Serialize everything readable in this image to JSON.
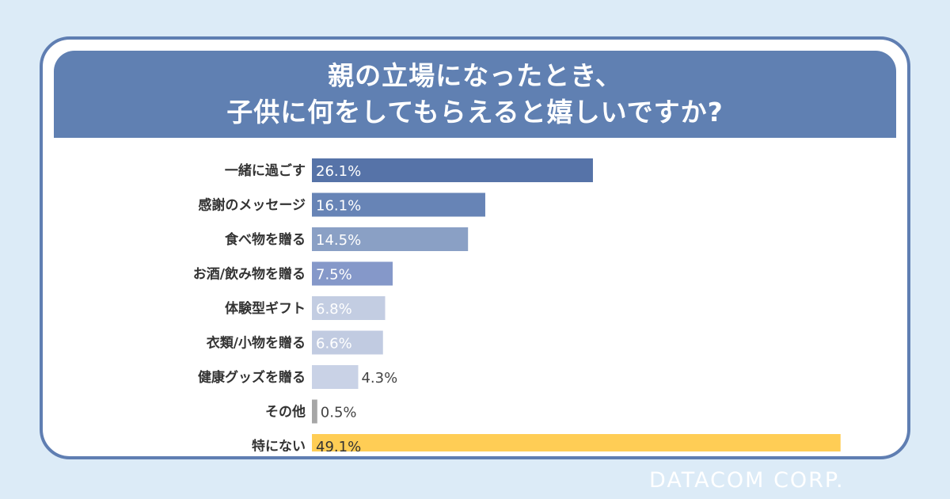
{
  "title": {
    "line1": "親の立場になったとき、",
    "line2": "子供に何をしてもらえると嬉しいですか?"
  },
  "colors": {
    "background": "#dcebf7",
    "card_border": "#5f7eb2",
    "title_band": "#6080b2",
    "category_label": "#333333",
    "value_label_on_bar": "#ffffff",
    "value_label_outside": "#444444"
  },
  "chart_data": {
    "type": "bar",
    "orientation": "horizontal",
    "categories": [
      "一緒に過ごす",
      "感謝のメッセージ",
      "食べ物を贈る",
      "お酒/飲み物を贈る",
      "体験型ギフト",
      "衣類/小物を贈る",
      "健康グッズを贈る",
      "その他",
      "特にない"
    ],
    "values": [
      26.1,
      16.1,
      14.5,
      7.5,
      6.8,
      6.6,
      4.3,
      0.5,
      49.1
    ],
    "labels": [
      "26.1%",
      "16.1%",
      "14.5%",
      "7.5%",
      "6.8%",
      "6.6%",
      "4.3%",
      "0.5%",
      "49.1%"
    ],
    "bar_colors": [
      "#5673a8",
      "#6784b6",
      "#8aa0c5",
      "#8598c9",
      "#c3cde2",
      "#c1cbe1",
      "#c9d2e6",
      "#a6a6a6",
      "#ffcd55"
    ],
    "xlim": [
      0,
      50
    ],
    "grid": false,
    "legend": false
  },
  "footer": {
    "logo_text": "DATACOM CORP."
  }
}
